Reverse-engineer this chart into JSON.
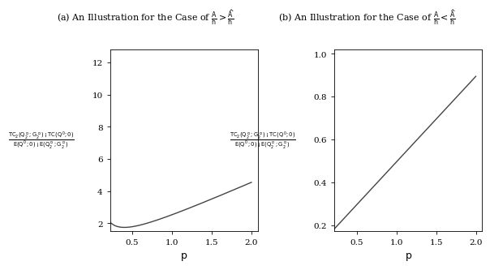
{
  "title_a": "(a) An Illustration for the Case of $\\frac{A}{h} > \\frac{\\hat{A}}{h}$",
  "title_b": "(b) An Illustration for the Case of $\\frac{A}{h} < \\frac{\\hat{A}}{h}$",
  "xlabel": "$p$",
  "ylabel_a": "$\\frac{TC_2(Q_2^*, G_2^*) - TC(Q^0, 0)}{E(Q^0, 0) - E(Q_2^*, G_2^*)}$",
  "ylabel_b": "$\\frac{TC_2(Q_2^*, G_2^*) - TC(Q^0, 0)}{E(Q^0, 0) - E(Q_2^*, G_2^*)}$",
  "x_start_a": 0.26,
  "x_end": 2.0,
  "x_start_b": 0.26,
  "xlim_a": [
    0.22,
    2.08
  ],
  "xlim_b": [
    0.22,
    2.08
  ],
  "ylim_a": [
    1.5,
    12.8
  ],
  "ylim_b": [
    0.17,
    1.02
  ],
  "xticks": [
    0.5,
    1,
    1.5,
    2
  ],
  "yticks_a": [
    2,
    4,
    6,
    8,
    10,
    12
  ],
  "yticks_b": [
    0.2,
    0.4,
    0.6,
    0.8,
    1.0
  ],
  "line_color": "#444444",
  "line_width": 1.0,
  "bg_color": "#ffffff",
  "curve_a_A": 0.24,
  "curve_a_n": 3,
  "curve_a_B": 1.2,
  "curve_a_C": 1.1,
  "curve_b_slope": 0.4,
  "curve_b_intercept": 0.095
}
